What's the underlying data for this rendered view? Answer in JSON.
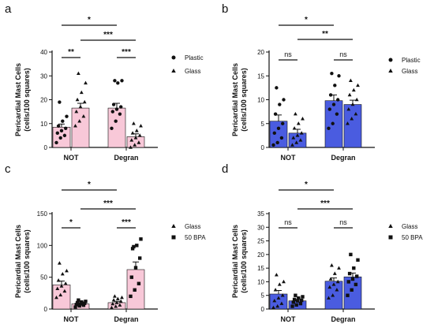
{
  "chart_data": [
    {
      "panel": "a",
      "type": "bar",
      "ylabel_line1": "Pericardial Mast Cells",
      "ylabel_line2": "(cells/100 squares)",
      "ylim": [
        0,
        40
      ],
      "yticks": [
        "0",
        "10",
        "20",
        "30",
        "40"
      ],
      "categories": [
        "NOT",
        "Degran"
      ],
      "bar_color": "#f8c8d8",
      "series": [
        {
          "name": "Plastic",
          "marker": "circle",
          "values": [
            8.5,
            16.5
          ],
          "errors": [
            1.3,
            2.0
          ],
          "points": [
            [
              2,
              4,
              5,
              6,
              7,
              8,
              9,
              11,
              13,
              19
            ],
            [
              8,
              11,
              14,
              15,
              16,
              17,
              18,
              27,
              28,
              28
            ]
          ]
        },
        {
          "name": "Glass",
          "marker": "triangle",
          "values": [
            16.5,
            4.5
          ],
          "errors": [
            2.0,
            1.2
          ],
          "points": [
            [
              9,
              11,
              13,
              15,
              17,
              19,
              20,
              23,
              27,
              31
            ],
            [
              0,
              1,
              2,
              3,
              4,
              5,
              6,
              7,
              9,
              10
            ]
          ]
        }
      ],
      "brackets": [
        {
          "from": "NOT-Plastic",
          "to": "NOT-Glass",
          "label": "**"
        },
        {
          "from": "Degran-Plastic",
          "to": "Degran-Glass",
          "label": "***"
        },
        {
          "from": "NOT-Glass",
          "to": "Degran-Glass",
          "label": "***"
        },
        {
          "from": "NOT-Plastic",
          "to": "Degran-Plastic",
          "label": "*"
        }
      ]
    },
    {
      "panel": "b",
      "type": "bar",
      "ylabel_line1": "Pericardial Mast Cells",
      "ylabel_line2": "(cells/100 squares)",
      "ylim": [
        0,
        20
      ],
      "yticks": [
        "0",
        "5",
        "10",
        "15",
        "20"
      ],
      "categories": [
        "NOT",
        "Degran"
      ],
      "bar_color": "#4a5ce0",
      "series": [
        {
          "name": "Plastic",
          "marker": "circle",
          "values": [
            5.5,
            9.8
          ],
          "errors": [
            1.3,
            1.2
          ],
          "points": [
            [
              0.5,
              1,
              2,
              3,
              4,
              5,
              7,
              9,
              10,
              12.5
            ],
            [
              4,
              5,
              7,
              8,
              9,
              10,
              11,
              13,
              15,
              15.5
            ]
          ]
        },
        {
          "name": "Glass",
          "marker": "triangle",
          "values": [
            3.0,
            9.0
          ],
          "errors": [
            0.8,
            0.9
          ],
          "points": [
            [
              0.5,
              1,
              1.5,
              2,
              2.5,
              3,
              4,
              5,
              6,
              7
            ],
            [
              5,
              6,
              7,
              8,
              9,
              10,
              11,
              12,
              13,
              14
            ]
          ]
        }
      ],
      "brackets": [
        {
          "from": "NOT-Plastic",
          "to": "NOT-Glass",
          "label": "ns"
        },
        {
          "from": "Degran-Plastic",
          "to": "Degran-Glass",
          "label": "ns"
        },
        {
          "from": "NOT-Glass",
          "to": "Degran-Glass",
          "label": "**"
        },
        {
          "from": "NOT-Plastic",
          "to": "Degran-Plastic",
          "label": "*"
        }
      ]
    },
    {
      "panel": "c",
      "type": "bar",
      "ylabel_line1": "Pericardial Mast Cells",
      "ylabel_line2": "(cells/100 squares)",
      "ylim": [
        0,
        150
      ],
      "yticks": [
        "0",
        "50",
        "100",
        "150"
      ],
      "categories": [
        "NOT",
        "Degran"
      ],
      "bar_color": "#f8c8d8",
      "series": [
        {
          "name": "Glass",
          "marker": "triangle",
          "values": [
            38,
            10
          ],
          "errors": [
            6,
            2
          ],
          "points": [
            [
              18,
              22,
              28,
              32,
              36,
              40,
              45,
              55,
              60,
              72
            ],
            [
              2,
              4,
              6,
              8,
              10,
              12,
              14,
              16,
              18,
              20
            ]
          ]
        },
        {
          "name": "50 BPA",
          "marker": "square",
          "values": [
            8,
            62
          ],
          "errors": [
            1.5,
            12
          ],
          "points": [
            [
              3,
              5,
              6,
              7,
              8,
              9,
              10,
              11,
              12,
              14
            ],
            [
              20,
              30,
              40,
              50,
              65,
              80,
              95,
              100,
              110,
              98
            ]
          ]
        }
      ],
      "brackets": [
        {
          "from": "NOT-Glass",
          "to": "NOT-50 BPA",
          "label": "*"
        },
        {
          "from": "Degran-Glass",
          "to": "Degran-50 BPA",
          "label": "***"
        },
        {
          "from": "NOT-50 BPA",
          "to": "Degran-50 BPA",
          "label": "***"
        },
        {
          "from": "NOT-Glass",
          "to": "Degran-Glass",
          "label": "*"
        }
      ]
    },
    {
      "panel": "d",
      "type": "bar",
      "ylabel_line1": "Pericardial Mast Cells",
      "ylabel_line2": "(cells/100 squares)",
      "ylim": [
        0,
        35
      ],
      "yticks": [
        "0",
        "5",
        "10",
        "15",
        "20",
        "25",
        "30",
        "35"
      ],
      "categories": [
        "NOT",
        "Degran"
      ],
      "bar_color": "#4a5ce0",
      "series": [
        {
          "name": "Glass",
          "marker": "triangle",
          "values": [
            5.5,
            10.2
          ],
          "errors": [
            1.3,
            1.2
          ],
          "points": [
            [
              0.5,
              1,
              2,
              3,
              4,
              5,
              7,
              9,
              10,
              12.5
            ],
            [
              4,
              5,
              7,
              8,
              9,
              10,
              11,
              13,
              15,
              16
            ]
          ]
        },
        {
          "name": "50 BPA",
          "marker": "square",
          "values": [
            3.0,
            11.8
          ],
          "errors": [
            0.5,
            1.4
          ],
          "points": [
            [
              1,
              1.5,
              2,
              2.5,
              3,
              3.2,
              3.5,
              4,
              4.5,
              5
            ],
            [
              5,
              7,
              9,
              10,
              11,
              12,
              13,
              15,
              18,
              20
            ]
          ]
        }
      ],
      "brackets": [
        {
          "from": "NOT-Glass",
          "to": "NOT-50 BPA",
          "label": "ns"
        },
        {
          "from": "Degran-Glass",
          "to": "Degran-50 BPA",
          "label": "ns"
        },
        {
          "from": "NOT-50 BPA",
          "to": "Degran-50 BPA",
          "label": "***"
        },
        {
          "from": "NOT-Glass",
          "to": "Degran-Glass",
          "label": "*"
        }
      ]
    }
  ]
}
